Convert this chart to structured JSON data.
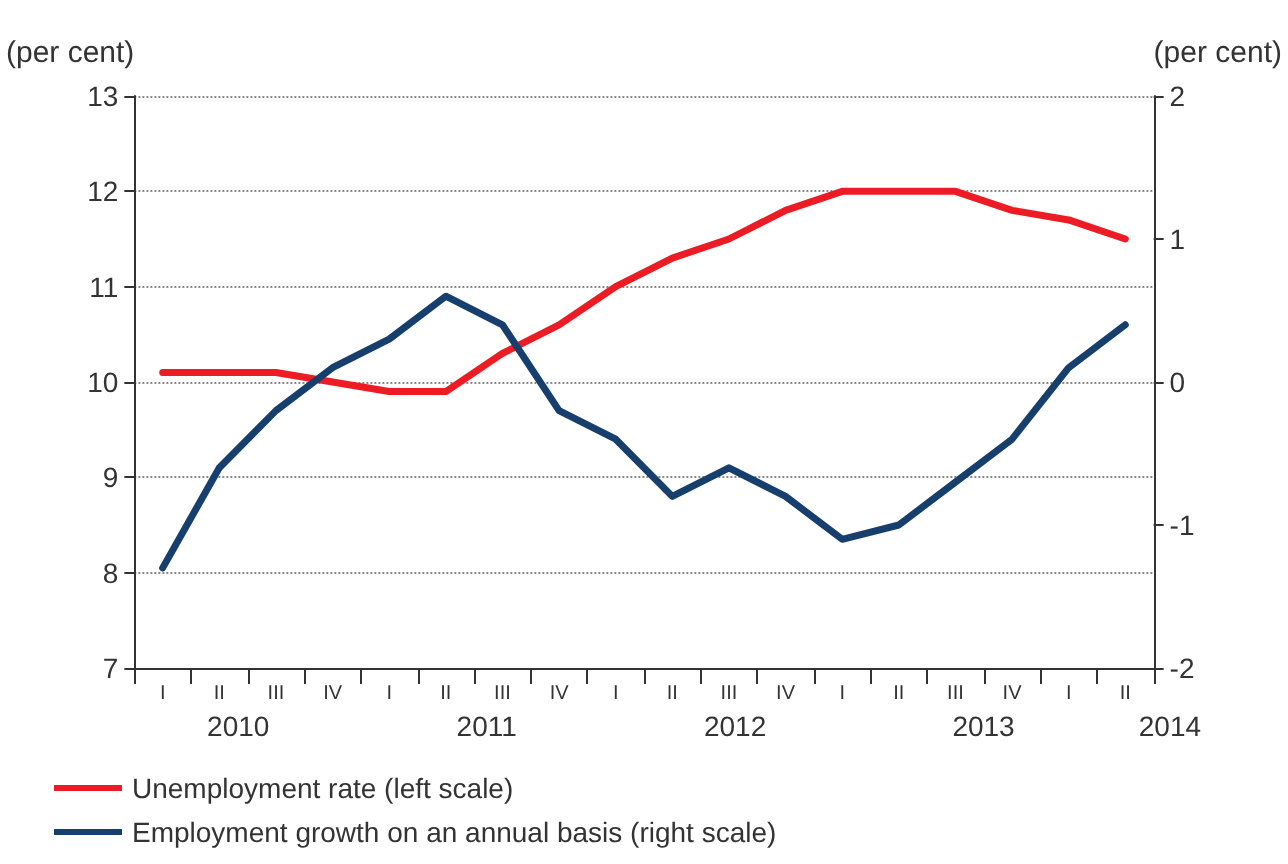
{
  "chart_data": {
    "type": "line",
    "ylabel": "(per cent)",
    "y2label": "(per cent)",
    "categories": [
      "I",
      "II",
      "III",
      "IV",
      "I",
      "II",
      "III",
      "IV",
      "I",
      "II",
      "III",
      "IV",
      "I",
      "II",
      "III",
      "IV",
      "I",
      "II"
    ],
    "annotations": [
      "2010",
      "2011",
      "2012",
      "2013",
      "2014"
    ],
    "series": [
      {
        "name": "Unemployment rate (left scale)",
        "color": "#ed1c24",
        "values": [
          10.1,
          10.1,
          10.1,
          10.0,
          9.9,
          9.9,
          10.3,
          10.6,
          11.0,
          11.3,
          11.5,
          11.8,
          12.0,
          12.0,
          12.0,
          11.8,
          11.7,
          11.5
        ]
      },
      {
        "name": "Employment growth on an annual basis (right scale)",
        "color": "#173f6e",
        "axis": "y2",
        "values": [
          -1.3,
          -0.6,
          -0.2,
          0.1,
          0.3,
          0.6,
          0.4,
          -0.2,
          -0.4,
          -0.8,
          -0.6,
          -0.8,
          -1.1,
          -1.0,
          -0.7,
          -0.4,
          0.1,
          0.4
        ]
      }
    ],
    "ylim": [
      7,
      13
    ],
    "yticks": [
      7,
      8,
      9,
      10,
      11,
      12,
      13
    ],
    "y2lim": [
      -2,
      2
    ],
    "y2ticks": [
      -2,
      -1,
      0,
      1,
      2
    ],
    "grid": "y",
    "legend": "bottom",
    "marker": "none",
    "line_style": "solid"
  }
}
